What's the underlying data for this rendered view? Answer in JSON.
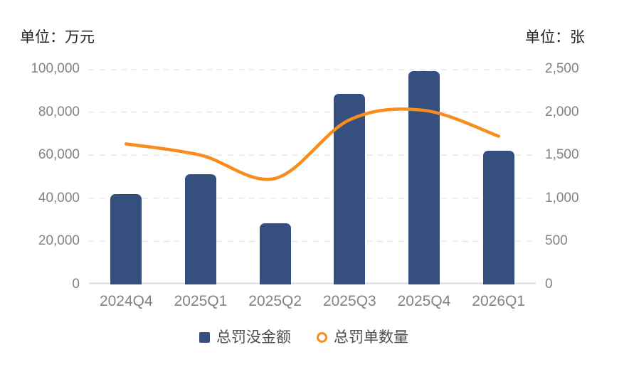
{
  "chart_data": {
    "type": "combo_bar_line",
    "categories": [
      "2024Q4",
      "2025Q1",
      "2025Q2",
      "2025Q3",
      "2025Q4",
      "2026Q1"
    ],
    "series": [
      {
        "name": "总罚没金额",
        "type": "bar",
        "axis": "left",
        "color": "#35507e",
        "values": [
          41900,
          51300,
          28300,
          88400,
          98900,
          62100
        ]
      },
      {
        "name": "总罚单数量",
        "type": "line",
        "axis": "right",
        "color": "#f88c1c",
        "values": [
          1630,
          1500,
          1230,
          1910,
          2020,
          1720
        ]
      }
    ],
    "left_axis": {
      "title": "单位：万元",
      "min": 0,
      "max": 100000,
      "step": 20000,
      "tick_labels_top_to_bottom": [
        "100,000",
        "80,000",
        "60,000",
        "40,000",
        "20,000",
        "0"
      ]
    },
    "right_axis": {
      "title": "单位：张",
      "min": 0,
      "max": 2500,
      "step": 500,
      "tick_labels_top_to_bottom": [
        "2,500",
        "2,000",
        "1,500",
        "1,000",
        "500",
        "0"
      ]
    },
    "grid": {
      "horizontal": "dashed",
      "color": "#e7e9ec",
      "baseline_color": "#d9dde3"
    },
    "legend_position": "bottom"
  },
  "colors": {
    "background": "#ffffff",
    "bar": "#35507e",
    "line": "#f88c1c",
    "tick_text": "#828282",
    "axis_title_text": "#262626",
    "legend_text": "#4d4d4d"
  }
}
